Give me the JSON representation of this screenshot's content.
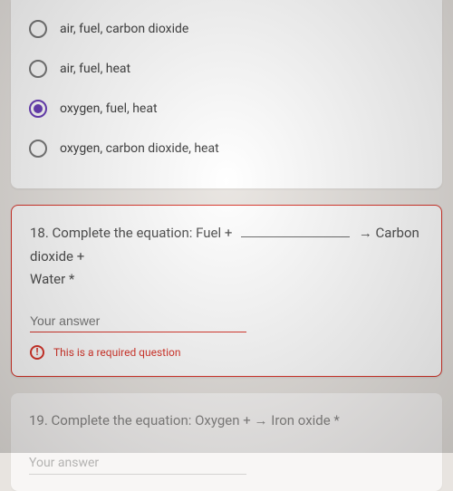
{
  "q17": {
    "options": [
      {
        "label": "air, fuel, carbon dioxide",
        "selected": false
      },
      {
        "label": "air, fuel, heat",
        "selected": false
      },
      {
        "label": "oxygen, fuel, heat",
        "selected": true
      },
      {
        "label": "oxygen, carbon dioxide, heat",
        "selected": false
      }
    ]
  },
  "q18": {
    "prefix": "18. Complete the equation: Fuel +",
    "after_blank": "→ Carbon dioxide +",
    "line2": "Water *",
    "placeholder": "Your answer",
    "error_text": "This is a required question"
  },
  "q19": {
    "prefix": "19. Complete the equation: Oxygen +",
    "after_blank": "→ Iron oxide *",
    "placeholder": "Your answer"
  },
  "colors": {
    "accent": "#673ab7",
    "error": "#d93025",
    "page_bg": "#e8e4e0"
  }
}
